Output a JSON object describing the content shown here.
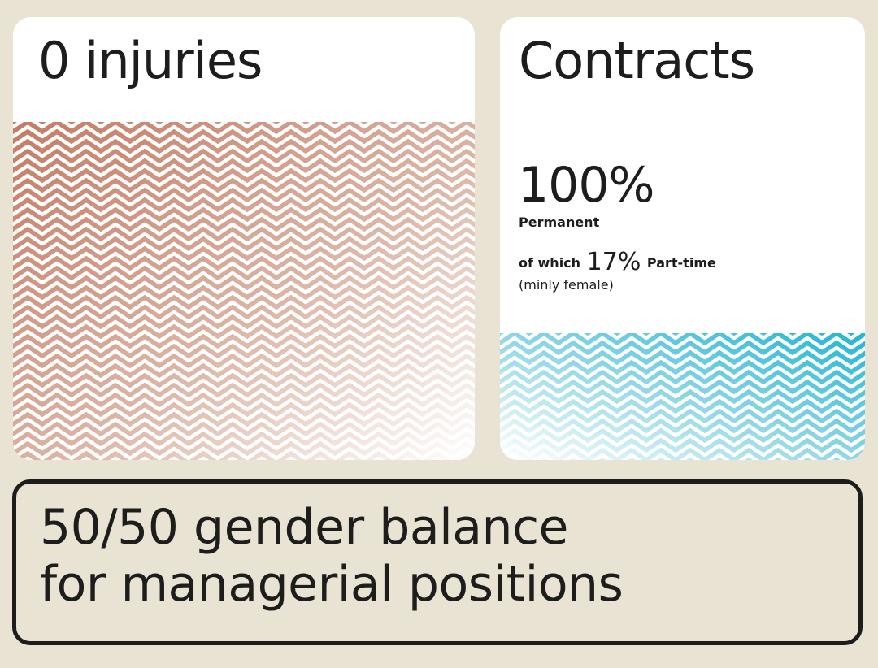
{
  "injuries_card": {
    "title": "0 injuries",
    "pattern_color": "#c47b64"
  },
  "contracts_card": {
    "title": "Contracts",
    "permanent_value": "100%",
    "permanent_label": "Permanent",
    "parttime_prefix": "of which",
    "parttime_value": "17%",
    "parttime_suffix": "Part-time",
    "parttime_note": "(minly female)",
    "pattern_color": "#1fb6d2"
  },
  "gender_box": {
    "line1": "50/50 gender balance",
    "line2": "for managerial positions",
    "border_color": "#1d1d1b"
  },
  "colors": {
    "background": "#e8e3d3",
    "card": "#ffffff",
    "text": "#1d1d1b"
  }
}
